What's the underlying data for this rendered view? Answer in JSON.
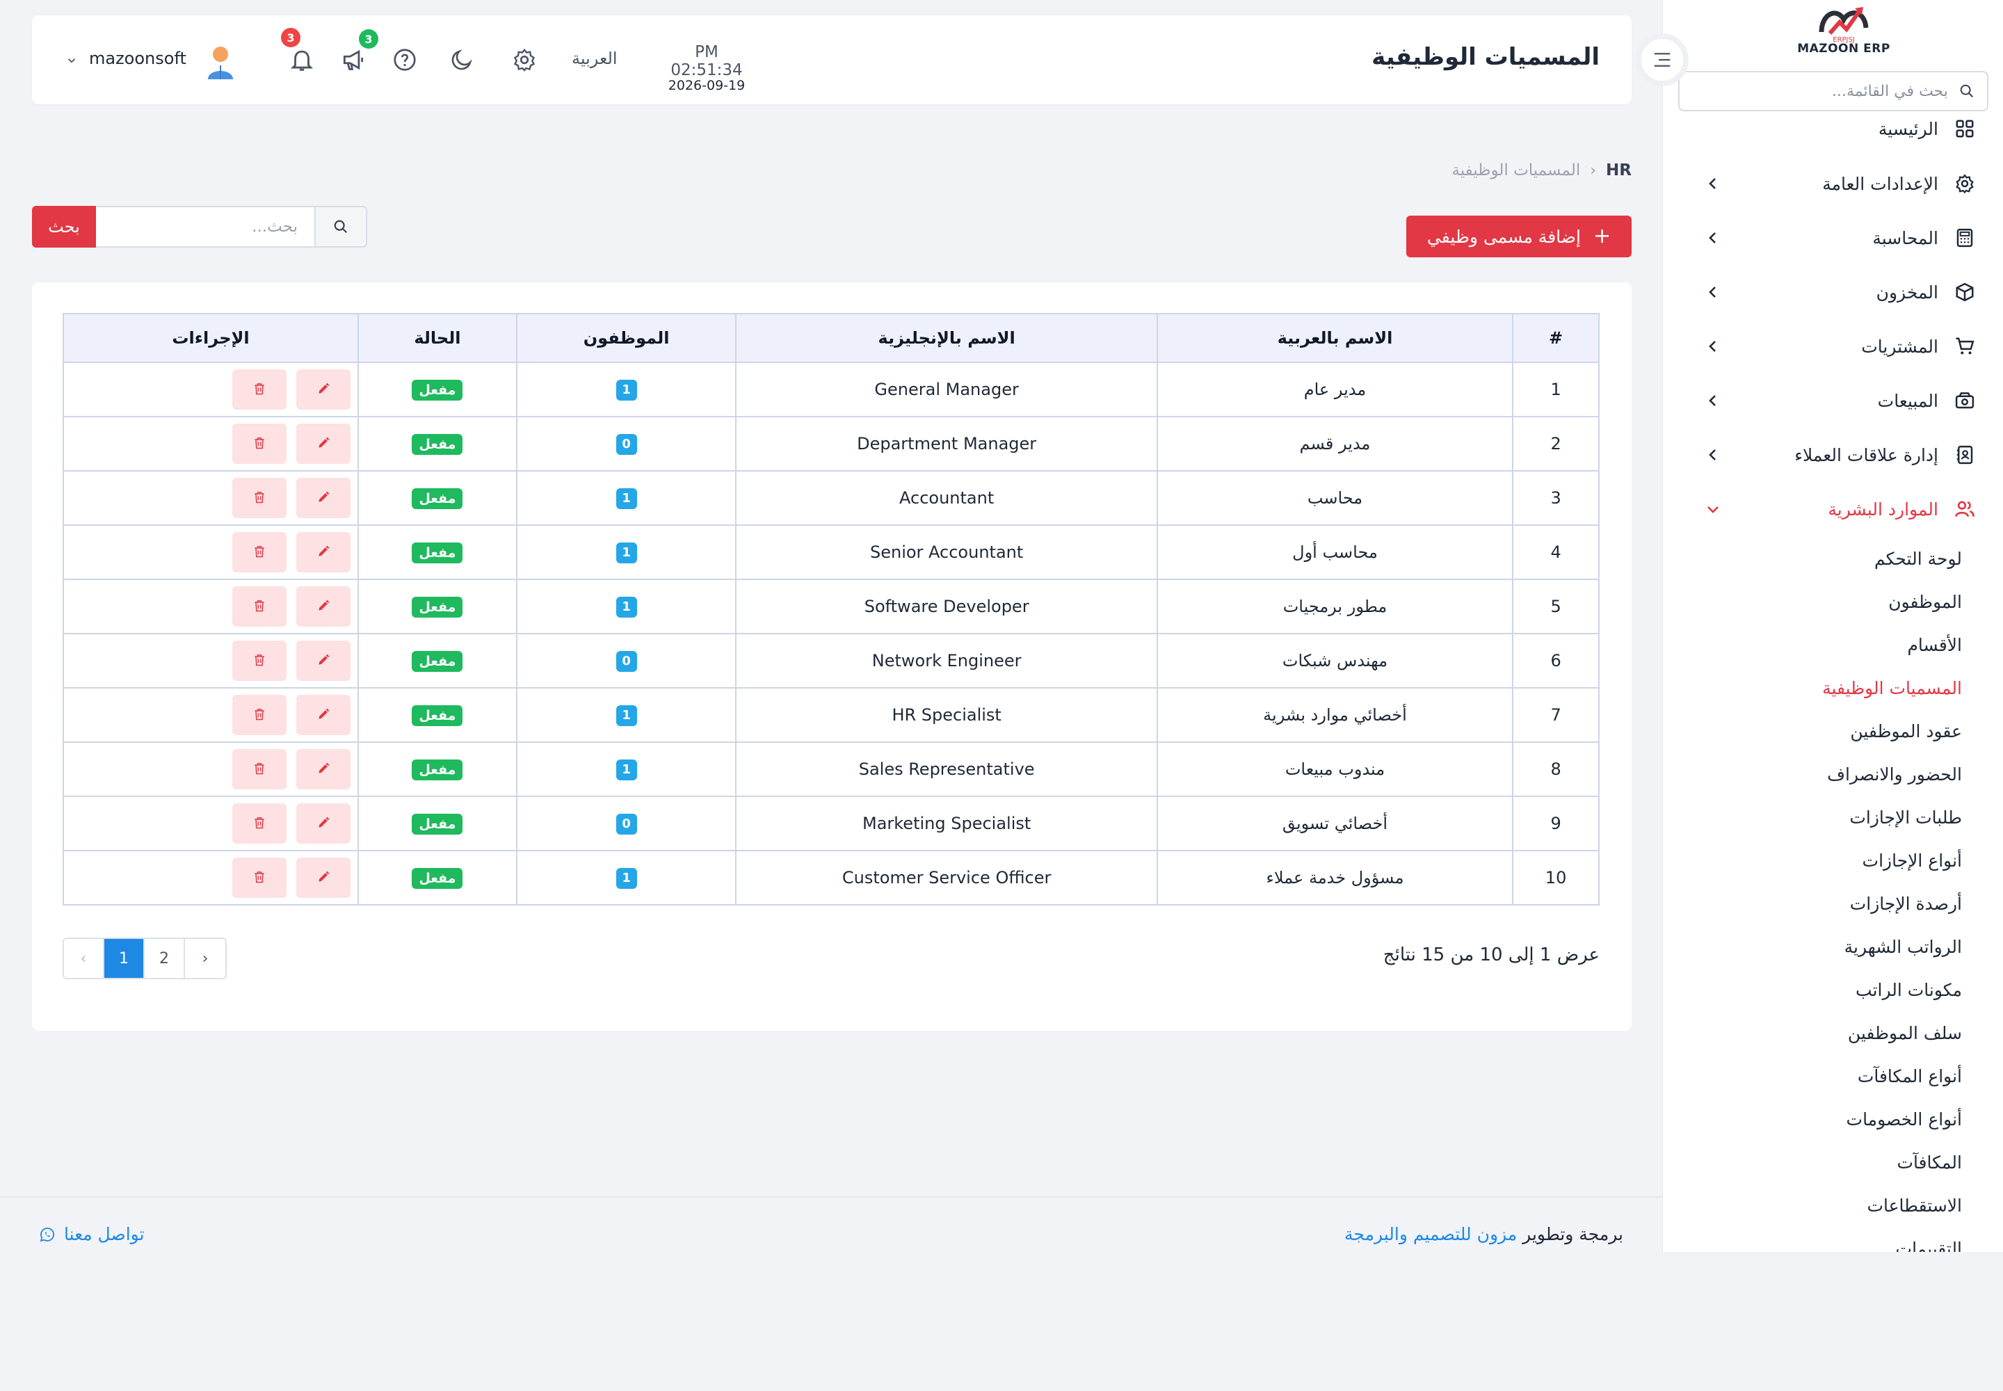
{
  "brand": {
    "logo_text": "ERPJSJ",
    "name": "MAZOON ERP"
  },
  "sidebar": {
    "search_placeholder": "بحث في القائمة...",
    "items": [
      {
        "label": "الرئيسية",
        "icon": "grid-icon"
      },
      {
        "label": "الإعدادات العامة",
        "icon": "gear-icon"
      },
      {
        "label": "المحاسبة",
        "icon": "calculator-icon"
      },
      {
        "label": "المخزون",
        "icon": "box-icon"
      },
      {
        "label": "المشتريات",
        "icon": "cart-icon"
      },
      {
        "label": "المبيعات",
        "icon": "register-icon"
      },
      {
        "label": "إدارة علاقات العملاء",
        "icon": "contacts-icon"
      },
      {
        "label": "الموارد البشرية",
        "icon": "users-icon"
      }
    ],
    "hr_sub_items": [
      "لوحة التحكم",
      "الموظفون",
      "الأقسام",
      "المسميات الوظيفية",
      "عقود الموظفين",
      "الحضور والانصراف",
      "طلبات الإجازات",
      "أنواع الإجازات",
      "أرصدة الإجازات",
      "الرواتب الشهرية",
      "مكونات الراتب",
      "سلف الموظفين",
      "أنواع المكافآت",
      "أنواع الخصومات",
      "المكافآت",
      "الاستقطاعات",
      "التقييمات"
    ],
    "active_color": "#e23744"
  },
  "header": {
    "title": "المسميات الوظيفية",
    "time": "PM 02:51:34",
    "date": "2026-09-19",
    "language": "العربية",
    "notifications_count": "3",
    "announcements_count": "3",
    "username": "mazoonsoft"
  },
  "breadcrumb": {
    "root": "HR",
    "current": "المسميات الوظيفية"
  },
  "toolbar": {
    "add_label": "إضافة مسمى وظيفي",
    "search_placeholder": "بحث...",
    "search_button": "بحث"
  },
  "table": {
    "headers": [
      "#",
      "الاسم بالعربية",
      "الاسم بالإنجليزية",
      "الموظفون",
      "الحالة",
      "الإجراءات"
    ],
    "rows": [
      {
        "num": "1",
        "ar": "مدير عام",
        "en": "General Manager",
        "count": "1",
        "status": "مفعل"
      },
      {
        "num": "2",
        "ar": "مدير قسم",
        "en": "Department Manager",
        "count": "0",
        "status": "مفعل"
      },
      {
        "num": "3",
        "ar": "محاسب",
        "en": "Accountant",
        "count": "1",
        "status": "مفعل"
      },
      {
        "num": "4",
        "ar": "محاسب أول",
        "en": "Senior Accountant",
        "count": "1",
        "status": "مفعل"
      },
      {
        "num": "5",
        "ar": "مطور برمجيات",
        "en": "Software Developer",
        "count": "1",
        "status": "مفعل"
      },
      {
        "num": "6",
        "ar": "مهندس شبكات",
        "en": "Network Engineer",
        "count": "0",
        "status": "مفعل"
      },
      {
        "num": "7",
        "ar": "أخصائي موارد بشرية",
        "en": "HR Specialist",
        "count": "1",
        "status": "مفعل"
      },
      {
        "num": "8",
        "ar": "مندوب مبيعات",
        "en": "Sales Representative",
        "count": "1",
        "status": "مفعل"
      },
      {
        "num": "9",
        "ar": "أخصائي تسويق",
        "en": "Marketing Specialist",
        "count": "0",
        "status": "مفعل"
      },
      {
        "num": "10",
        "ar": "مسؤول خدمة عملاء",
        "en": "Customer Service Officer",
        "count": "1",
        "status": "مفعل"
      }
    ]
  },
  "pagination": {
    "prev": "‹",
    "pages": [
      "1",
      "2"
    ],
    "next": "›",
    "current": "1",
    "summary": "عرض 1 إلى 10 من 15 نتائج"
  },
  "footer": {
    "credit_prefix": "برمجة وتطوير",
    "credit_link": "مزون للتصميم والبرمجة",
    "contact": "تواصل معنا"
  },
  "colors": {
    "primary": "#e23744",
    "info": "#25a6e6",
    "success": "#1fb95e",
    "link": "#1e88e5"
  }
}
